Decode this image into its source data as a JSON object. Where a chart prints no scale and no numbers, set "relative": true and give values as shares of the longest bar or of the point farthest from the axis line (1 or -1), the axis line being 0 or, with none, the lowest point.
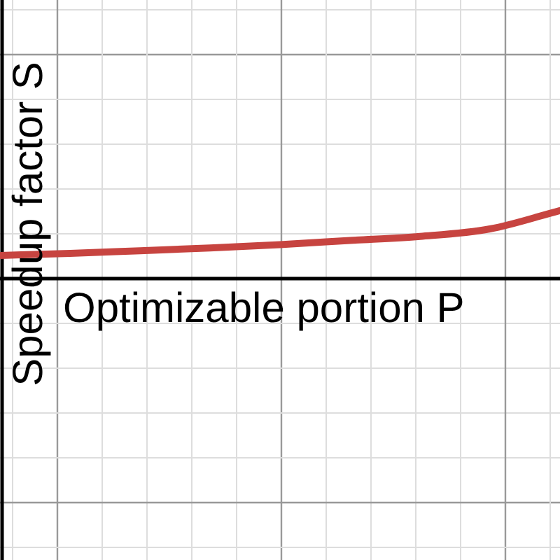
{
  "chart_data": {
    "type": "line",
    "xlabel": "Optimizable portion P",
    "ylabel": "Speedup factor S",
    "relative": true,
    "grid": true,
    "marker": "none",
    "line_style": "solid",
    "legend": false,
    "categories": [
      null,
      null,
      null,
      null,
      null,
      null,
      null,
      null,
      null
    ],
    "series": [
      {
        "color": "#c74440",
        "values": [
          0.34,
          0.37,
          0.41,
          0.45,
          0.5,
          0.56,
          0.62,
          0.73,
          1
        ]
      }
    ]
  }
}
